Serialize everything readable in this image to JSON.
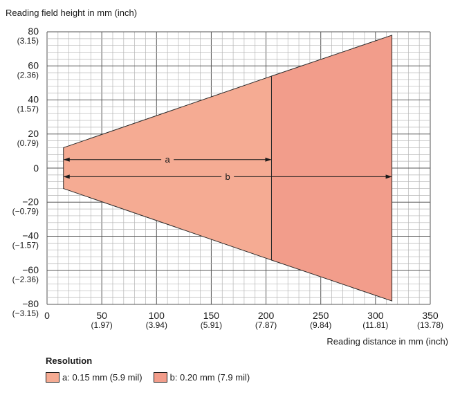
{
  "chart_data": {
    "type": "area",
    "ylabel": "Reading field height in mm (inch)",
    "xlabel": "Reading distance in mm (inch)",
    "xlim": [
      0,
      350
    ],
    "ylim": [
      -80,
      80
    ],
    "x_ticks": [
      {
        "value": 0,
        "mm": "0",
        "inch": ""
      },
      {
        "value": 50,
        "mm": "50",
        "inch": "(1.97)"
      },
      {
        "value": 100,
        "mm": "100",
        "inch": "(3.94)"
      },
      {
        "value": 150,
        "mm": "150",
        "inch": "(5.91)"
      },
      {
        "value": 200,
        "mm": "200",
        "inch": "(7.87)"
      },
      {
        "value": 250,
        "mm": "250",
        "inch": "(9.84)"
      },
      {
        "value": 300,
        "mm": "300",
        "inch": "(11.81)"
      },
      {
        "value": 350,
        "mm": "350",
        "inch": "(13.78)"
      }
    ],
    "y_ticks": [
      {
        "value": 80,
        "mm": "80",
        "inch": "(3.15)"
      },
      {
        "value": 60,
        "mm": "60",
        "inch": "(2.36)"
      },
      {
        "value": 40,
        "mm": "40",
        "inch": "(1.57)"
      },
      {
        "value": 20,
        "mm": "20",
        "inch": "(0.79)"
      },
      {
        "value": 0,
        "mm": "0",
        "inch": ""
      },
      {
        "value": -20,
        "mm": "−20",
        "inch": "(−0.79)"
      },
      {
        "value": -40,
        "mm": "−40",
        "inch": "(−1.57)"
      },
      {
        "value": -60,
        "mm": "−60",
        "inch": "(−2.36)"
      },
      {
        "value": -80,
        "mm": "−80",
        "inch": "(−3.15)"
      }
    ],
    "grid": true,
    "series": [
      {
        "name": "a",
        "color": "#f5ab93",
        "x_range": [
          15,
          205
        ],
        "upper": [
          12,
          54
        ],
        "lower": [
          -12,
          -54
        ],
        "arrow_y": 5
      },
      {
        "name": "b",
        "color": "#f29d8b",
        "x_range": [
          205,
          315
        ],
        "upper": [
          54,
          78
        ],
        "lower": [
          -54,
          -78
        ],
        "arrow_x_range": [
          15,
          315
        ],
        "arrow_y": -5
      }
    ]
  },
  "legend": {
    "title": "Resolution",
    "items": [
      {
        "label": "a: 0.15 mm (5.9 mil)",
        "color": "#f5ab93"
      },
      {
        "label": "b:  0.20 mm (7.9 mil)",
        "color": "#f29d8b"
      }
    ]
  }
}
